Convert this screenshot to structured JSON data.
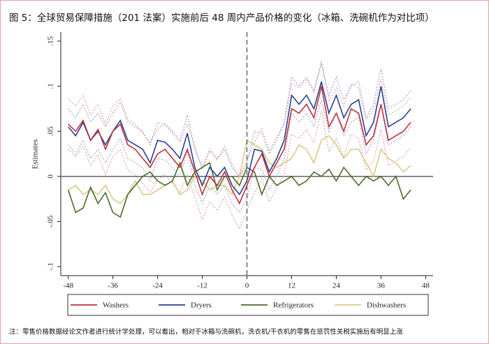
{
  "chart_data": {
    "type": "line",
    "title": "图 5：全球贸易保障措施（201 法案）实施前后 48 周内产品价格的变化（冰箱、洗碗机作为对比项）",
    "y_label": "Estimates",
    "note": "注：零售价格数据经论文作者进行统计学处理，可以看出，相对于冰箱与洗碗机，洗衣机/干衣机的零售在惩罚性关税实施后有明显上涨",
    "x": [
      -48,
      -46,
      -44,
      -42,
      -40,
      -38,
      -36,
      -34,
      -32,
      -30,
      -28,
      -26,
      -24,
      -22,
      -20,
      -18,
      -16,
      -14,
      -12,
      -10,
      -8,
      -6,
      -4,
      -2,
      0,
      2,
      4,
      6,
      8,
      10,
      12,
      14,
      16,
      18,
      20,
      22,
      24,
      26,
      28,
      30,
      32,
      34,
      36,
      38,
      40,
      42,
      44
    ],
    "series": [
      {
        "name": "Washers",
        "color": "#c0303a",
        "values": [
          0.058,
          0.05,
          0.062,
          0.04,
          0.052,
          0.03,
          0.05,
          0.058,
          0.035,
          0.03,
          0.02,
          0.01,
          0.025,
          0.03,
          0.02,
          0.01,
          0.03,
          0.005,
          -0.02,
          0,
          -0.01,
          0.005,
          -0.015,
          -0.03,
          -0.01,
          0.01,
          0.025,
          0,
          0.015,
          0.03,
          0.075,
          0.07,
          0.08,
          0.065,
          0.1,
          0.055,
          0.07,
          0.05,
          0.075,
          0.07,
          0.035,
          0.045,
          0.08,
          0.04,
          0.045,
          0.05,
          0.06
        ]
      },
      {
        "name": "Dryers",
        "color": "#2a3f8f",
        "values": [
          0.055,
          0.045,
          0.06,
          0.04,
          0.05,
          0.035,
          0.05,
          0.062,
          0.04,
          0.035,
          0.03,
          0.015,
          0.04,
          0.038,
          0.03,
          0.02,
          0.048,
          0.01,
          -0.01,
          0.01,
          0,
          0.01,
          -0.01,
          -0.02,
          -0.005,
          0.03,
          0.028,
          0.005,
          0.02,
          0.04,
          0.09,
          0.08,
          0.09,
          0.075,
          0.105,
          0.07,
          0.09,
          0.065,
          0.08,
          0.085,
          0.045,
          0.06,
          0.1,
          0.055,
          0.06,
          0.065,
          0.075
        ]
      },
      {
        "name": "Refrigerators",
        "color": "#4b6b2a",
        "values": [
          -0.015,
          -0.04,
          -0.035,
          -0.012,
          -0.03,
          -0.018,
          -0.04,
          -0.045,
          -0.02,
          -0.01,
          0,
          0.005,
          -0.005,
          -0.01,
          -0.005,
          0.015,
          -0.01,
          0.005,
          0.01,
          0.015,
          -0.015,
          0,
          0,
          -0.01,
          0.01,
          0.005,
          -0.02,
          0,
          -0.01,
          -0.005,
          0,
          -0.01,
          -0.005,
          0.005,
          0,
          0.008,
          -0.005,
          0.01,
          0,
          -0.01,
          0,
          -0.005,
          0,
          -0.01,
          0,
          -0.025,
          -0.015
        ]
      },
      {
        "name": "Dishwashers",
        "color": "#d9c98a",
        "values": [
          -0.015,
          -0.01,
          -0.02,
          -0.015,
          -0.02,
          -0.01,
          -0.025,
          -0.03,
          -0.02,
          -0.005,
          -0.02,
          -0.02,
          -0.015,
          -0.01,
          -0.005,
          -0.02,
          -0.015,
          0,
          -0.005,
          -0.015,
          -0.01,
          -0.01,
          -0.02,
          0,
          0.04,
          0.035,
          0.03,
          0.015,
          0.01,
          0.015,
          0.02,
          0.035,
          0.03,
          0.015,
          0.04,
          0.045,
          0.035,
          0.02,
          0.03,
          0.03,
          0.015,
          0,
          0.03,
          0.02,
          0.015,
          0.005,
          0.012
        ]
      }
    ],
    "bands": [
      {
        "color": "#e08a8a",
        "upper": [
          0.086,
          0.078,
          0.09,
          0.068,
          0.08,
          0.058,
          0.078,
          0.086,
          0.063,
          0.058,
          0.048,
          0.038,
          0.053,
          0.058,
          0.048,
          0.038,
          0.058,
          0.033,
          0.008,
          0.028,
          0.018,
          0.033,
          0.013,
          -0.002,
          0.018,
          0.038,
          0.053,
          0.028,
          0.043,
          0.058,
          0.103,
          0.098,
          0.108,
          0.093,
          0.128,
          0.083,
          0.098,
          0.078,
          0.103,
          0.098,
          0.063,
          0.073,
          0.108,
          0.068,
          0.073,
          0.078,
          0.088
        ],
        "lower": [
          0.03,
          0.022,
          0.034,
          0.012,
          0.024,
          0.002,
          0.022,
          0.03,
          0.007,
          0.002,
          -0.008,
          -0.018,
          -0.003,
          0.002,
          -0.008,
          -0.018,
          0.002,
          -0.023,
          -0.048,
          -0.028,
          -0.038,
          -0.023,
          -0.043,
          -0.058,
          -0.038,
          -0.018,
          -0.003,
          -0.028,
          -0.013,
          0.002,
          0.047,
          0.042,
          0.052,
          0.037,
          0.072,
          0.027,
          0.042,
          0.022,
          0.047,
          0.042,
          0.007,
          0.017,
          0.052,
          0.012,
          0.017,
          0.022,
          0.032
        ]
      },
      {
        "color": "#8a8ad9",
        "upper": [
          0.075,
          0.065,
          0.08,
          0.06,
          0.07,
          0.055,
          0.07,
          0.082,
          0.06,
          0.055,
          0.05,
          0.035,
          0.06,
          0.058,
          0.05,
          0.04,
          0.068,
          0.03,
          0.01,
          0.03,
          0.02,
          0.03,
          0.01,
          0,
          0.015,
          0.05,
          0.048,
          0.025,
          0.04,
          0.06,
          0.11,
          0.1,
          0.11,
          0.095,
          0.125,
          0.09,
          0.11,
          0.085,
          0.1,
          0.105,
          0.065,
          0.08,
          0.12,
          0.075,
          0.08,
          0.085,
          0.095
        ],
        "lower": [
          0.035,
          0.025,
          0.04,
          0.02,
          0.03,
          0.015,
          0.03,
          0.042,
          0.02,
          0.015,
          0.01,
          -0.005,
          0.02,
          0.018,
          0.01,
          0,
          0.028,
          -0.01,
          -0.03,
          -0.01,
          -0.02,
          -0.01,
          -0.03,
          -0.04,
          -0.025,
          0.01,
          0.008,
          -0.015,
          0,
          0.02,
          0.07,
          0.06,
          0.07,
          0.055,
          0.085,
          0.05,
          0.07,
          0.045,
          0.06,
          0.065,
          0.025,
          0.04,
          0.08,
          0.035,
          0.04,
          0.045,
          0.055
        ]
      }
    ],
    "vline": 0,
    "hline": 0,
    "xlim": [
      -50,
      50
    ],
    "xticks": [
      -48,
      -36,
      -24,
      -12,
      0,
      12,
      24,
      36,
      48
    ],
    "ylim": [
      -0.11,
      0.16
    ],
    "yticks": [
      {
        "value": -0.1,
        "label": "-.1"
      },
      {
        "value": -0.05,
        "label": "-.05"
      },
      {
        "value": 0,
        "label": "0"
      },
      {
        "value": 0.05,
        "label": ".05"
      },
      {
        "value": 0.1,
        "label": ".1"
      },
      {
        "value": 0.15,
        "label": ".15"
      }
    ]
  }
}
